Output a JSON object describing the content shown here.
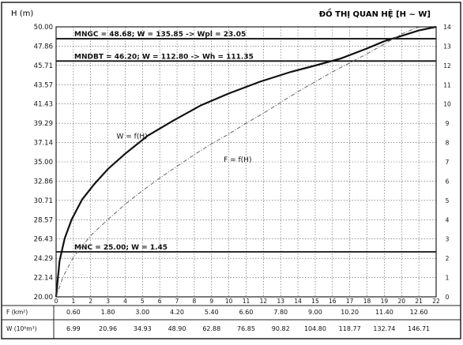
{
  "chart_data": {
    "type": "line",
    "title": "ĐỒ THỊ QUAN HỆ  [H ~ W]",
    "ylabel": "H (m)",
    "y_ticks": [
      "50.00",
      "47.86",
      "45.71",
      "43.57",
      "41.43",
      "39.29",
      "37.14",
      "35.00",
      "32.86",
      "30.71",
      "28.57",
      "26.43",
      "24.29",
      "22.14",
      "20.00"
    ],
    "x_ticks": [
      "0",
      "1",
      "2",
      "3",
      "4",
      "5",
      "6",
      "7",
      "8",
      "9",
      "10",
      "11",
      "12",
      "13",
      "14",
      "15",
      "16",
      "17",
      "18",
      "19",
      "20",
      "21",
      "22"
    ],
    "right_ticks": [
      "0",
      "1",
      "2",
      "3",
      "4",
      "5",
      "6",
      "7",
      "8",
      "9",
      "10",
      "11",
      "12",
      "13",
      "14"
    ],
    "xlim": [
      0,
      22
    ],
    "ylim": [
      20,
      50
    ],
    "grid": true,
    "series": [
      {
        "name": "W = f(H)",
        "style": "solid",
        "color": "#111111",
        "points": [
          [
            0,
            20
          ],
          [
            0.2,
            24.0
          ],
          [
            0.5,
            26.5
          ],
          [
            0.9,
            28.6
          ],
          [
            1.5,
            30.8
          ],
          [
            2.2,
            32.5
          ],
          [
            3.0,
            34.2
          ],
          [
            4.0,
            35.9
          ],
          [
            5.3,
            37.9
          ],
          [
            6.8,
            39.6
          ],
          [
            8.4,
            41.3
          ],
          [
            10.0,
            42.6
          ],
          [
            11.8,
            43.9
          ],
          [
            13.6,
            45.0
          ],
          [
            15.0,
            45.7
          ],
          [
            16.5,
            46.5
          ],
          [
            18.0,
            47.6
          ],
          [
            19.0,
            48.4
          ],
          [
            20.0,
            49.0
          ],
          [
            21.0,
            49.6
          ],
          [
            22.0,
            50.0
          ]
        ]
      },
      {
        "name": "F = f(H)",
        "style": "dash-dot",
        "color": "#666666",
        "points": [
          [
            0,
            20
          ],
          [
            0.4,
            22.2
          ],
          [
            1.0,
            24.4
          ],
          [
            2.0,
            26.8
          ],
          [
            3.0,
            28.6
          ],
          [
            4.0,
            30.3
          ],
          [
            5.0,
            31.8
          ],
          [
            6.0,
            33.2
          ],
          [
            7.0,
            34.5
          ],
          [
            8.0,
            35.8
          ],
          [
            9.0,
            37.0
          ],
          [
            10.0,
            38.1
          ],
          [
            11.0,
            39.3
          ],
          [
            12.0,
            40.4
          ],
          [
            13.0,
            41.6
          ],
          [
            14.0,
            42.8
          ],
          [
            15.0,
            43.9
          ],
          [
            16.0,
            45.0
          ],
          [
            17.0,
            46.0
          ],
          [
            18.0,
            47.0
          ],
          [
            19.0,
            48.1
          ],
          [
            20.0,
            49.2
          ],
          [
            21.0,
            50.0
          ]
        ]
      }
    ],
    "hlines": [
      {
        "label": "MNGC = 48.68;  W = 135.85  -> Wpl = 23.05",
        "y": 48.68
      },
      {
        "label": "MNDBT = 46.20;  W = 112.80  -> Wh = 111.35",
        "y": 46.2
      },
      {
        "label": "MNC = 25.00;  W = 1.45",
        "y": 25.0
      }
    ],
    "series_labels": [
      {
        "text": "W = f(H)",
        "x": 3.5,
        "y": 37.6
      },
      {
        "text": "F = f(H)",
        "x": 9.7,
        "y": 35.0
      }
    ],
    "table": {
      "f_label": "F (km²)",
      "w_label": "W (10⁶m³)",
      "f_values": [
        "0.60",
        "1.80",
        "3.00",
        "4.20",
        "5.40",
        "6.60",
        "7.80",
        "9.00",
        "10.20",
        "11.40",
        "12.60"
      ],
      "w_values": [
        "6.99",
        "20.96",
        "34.93",
        "48.90",
        "62.88",
        "76.85",
        "90.82",
        "104.80",
        "118.77",
        "132.74",
        "146.71"
      ]
    }
  }
}
